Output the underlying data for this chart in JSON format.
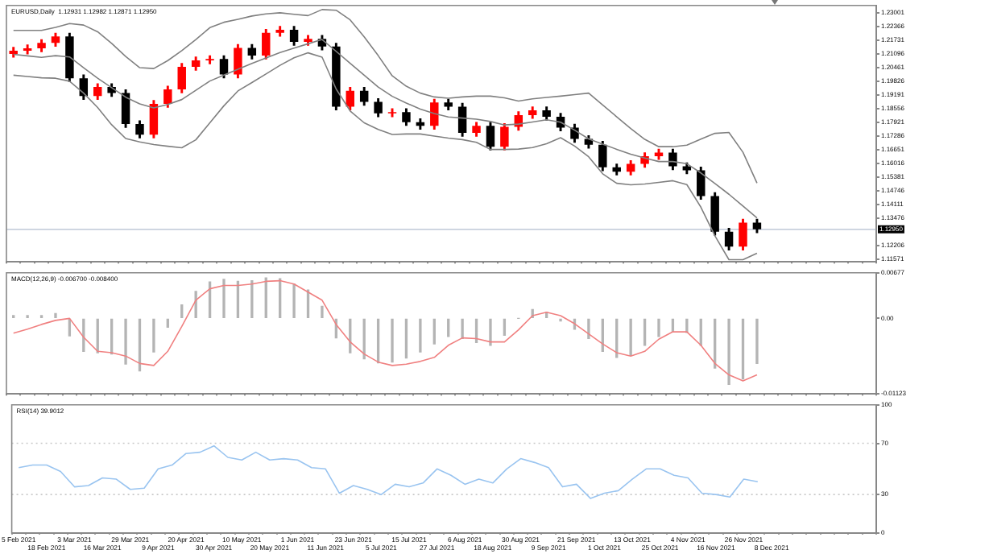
{
  "chart_data": [
    {
      "type": "candlestick",
      "title": "EURUSD,Daily  1.12931 1.12982 1.12871 1.12950",
      "categories": [
        null,
        null,
        null,
        null,
        null,
        null,
        null,
        null,
        null,
        null,
        null,
        null,
        null,
        null,
        null,
        null,
        null,
        null,
        null,
        null,
        null,
        null,
        null,
        null,
        null,
        null,
        null,
        null,
        null,
        null,
        null,
        null,
        null,
        null,
        null,
        null,
        null,
        null,
        null,
        null,
        null,
        null,
        null,
        null,
        null,
        null,
        null,
        null,
        null,
        null,
        null,
        null,
        null,
        null,
        null,
        null,
        null,
        null,
        null,
        null,
        null,
        null
      ],
      "ohlc": [
        [
          1.211,
          1.214,
          1.2095,
          1.2125
        ],
        [
          1.2125,
          1.2151,
          1.211,
          1.2136
        ],
        [
          1.2136,
          1.2176,
          1.2121,
          1.2161
        ],
        [
          1.2161,
          1.2206,
          1.2146,
          1.2191
        ],
        [
          1.2191,
          1.2206,
          1.1982,
          1.1997
        ],
        [
          1.1997,
          1.2012,
          1.1899,
          1.1914
        ],
        [
          1.1914,
          1.1971,
          1.1899,
          1.1956
        ],
        [
          1.1956,
          1.1971,
          1.1913,
          1.1928
        ],
        [
          1.1928,
          1.1943,
          1.1769,
          1.1784
        ],
        [
          1.1784,
          1.1799,
          1.172,
          1.1735
        ],
        [
          1.1735,
          1.1893,
          1.172,
          1.1878
        ],
        [
          1.1878,
          1.196,
          1.1863,
          1.1945
        ],
        [
          1.1945,
          1.2065,
          1.193,
          1.205
        ],
        [
          1.205,
          1.2095,
          1.2035,
          1.208
        ],
        [
          1.208,
          1.2101,
          1.2065,
          1.2086
        ],
        [
          1.2086,
          1.2101,
          1.1999,
          1.2014
        ],
        [
          1.2014,
          1.2153,
          1.1999,
          1.2138
        ],
        [
          1.2138,
          1.2153,
          1.2087,
          1.2102
        ],
        [
          1.2102,
          1.2223,
          1.2087,
          1.2208
        ],
        [
          1.2208,
          1.2237,
          1.2193,
          1.2222
        ],
        [
          1.2222,
          1.2237,
          1.2151,
          1.2166
        ],
        [
          1.2166,
          1.2195,
          1.2151,
          1.218
        ],
        [
          1.218,
          1.2195,
          1.2129,
          1.2144
        ],
        [
          1.2144,
          1.2159,
          1.185,
          1.1865
        ],
        [
          1.1865,
          1.1954,
          1.185,
          1.1939
        ],
        [
          1.1939,
          1.1954,
          1.1872,
          1.1887
        ],
        [
          1.1887,
          1.1902,
          1.1819,
          1.1834
        ],
        [
          1.1834,
          1.1855,
          1.1819,
          1.184
        ],
        [
          1.184,
          1.1855,
          1.1778,
          1.1793
        ],
        [
          1.1793,
          1.1808,
          1.1761,
          1.1776
        ],
        [
          1.1776,
          1.1899,
          1.1761,
          1.1884
        ],
        [
          1.1884,
          1.1899,
          1.185,
          1.1865
        ],
        [
          1.1865,
          1.188,
          1.1728,
          1.1743
        ],
        [
          1.1743,
          1.1791,
          1.1728,
          1.1776
        ],
        [
          1.1776,
          1.1791,
          1.1664,
          1.1679
        ],
        [
          1.1679,
          1.1786,
          1.1664,
          1.1771
        ],
        [
          1.1771,
          1.1841,
          1.1756,
          1.1826
        ],
        [
          1.1826,
          1.1863,
          1.1811,
          1.1848
        ],
        [
          1.1848,
          1.1863,
          1.1803,
          1.1818
        ],
        [
          1.1818,
          1.1833,
          1.1753,
          1.1768
        ],
        [
          1.1768,
          1.1783,
          1.17,
          1.1715
        ],
        [
          1.1715,
          1.173,
          1.1673,
          1.1688
        ],
        [
          1.1688,
          1.1703,
          1.1568,
          1.1583
        ],
        [
          1.1583,
          1.1598,
          1.1548,
          1.1563
        ],
        [
          1.1563,
          1.1614,
          1.1548,
          1.1599
        ],
        [
          1.1599,
          1.165,
          1.1584,
          1.1635
        ],
        [
          1.1635,
          1.1667,
          1.162,
          1.1652
        ],
        [
          1.1652,
          1.1667,
          1.1573,
          1.1588
        ],
        [
          1.1588,
          1.1603,
          1.1554,
          1.1569
        ],
        [
          1.1569,
          1.1584,
          1.1435,
          1.145
        ],
        [
          1.145,
          1.1465,
          1.1269,
          1.1284
        ],
        [
          1.1284,
          1.1299,
          1.12,
          1.1215
        ],
        [
          1.1215,
          1.1341,
          1.12,
          1.1326
        ],
        [
          1.1326,
          1.1341,
          1.128,
          1.1295
        ],
        null,
        null,
        null,
        null,
        null,
        null,
        null,
        null
      ],
      "colors": [
        "#ff0000",
        "#ff0000",
        "#ff0000",
        "#ff0000",
        "#000000",
        "#000000",
        "#ff0000",
        "#000000",
        "#000000",
        "#000000",
        "#ff0000",
        "#ff0000",
        "#ff0000",
        "#ff0000",
        "#ff0000",
        "#000000",
        "#ff0000",
        "#000000",
        "#ff0000",
        "#ff0000",
        "#000000",
        "#ff0000",
        "#000000",
        "#000000",
        "#ff0000",
        "#000000",
        "#000000",
        "#ff0000",
        "#000000",
        "#000000",
        "#ff0000",
        "#000000",
        "#000000",
        "#ff0000",
        "#000000",
        "#ff0000",
        "#ff0000",
        "#ff0000",
        "#000000",
        "#000000",
        "#000000",
        "#000000",
        "#000000",
        "#000000",
        "#ff0000",
        "#ff0000",
        "#ff0000",
        "#000000",
        "#000000",
        "#000000",
        "#000000",
        "#000000",
        "#ff0000",
        "#000000",
        null,
        null,
        null,
        null,
        null,
        null,
        null,
        null
      ],
      "series": [
        {
          "type": "line",
          "color": "#808080",
          "values": [
            1.2219,
            1.2219,
            1.2219,
            1.2233,
            1.2251,
            1.2244,
            1.2213,
            1.2159,
            1.2098,
            1.2046,
            1.2042,
            1.2079,
            1.2125,
            1.2177,
            1.2232,
            1.2257,
            1.2271,
            1.2286,
            1.2296,
            1.2301,
            1.2294,
            1.2288,
            1.2316,
            1.2313,
            1.2268,
            1.2189,
            1.2102,
            1.2008,
            1.196,
            1.1928,
            1.191,
            1.1904,
            1.191,
            1.1914,
            1.1914,
            1.1906,
            1.1891,
            1.1901,
            1.1908,
            1.1914,
            1.1921,
            1.1928,
            1.1873,
            1.1818,
            1.1763,
            1.1713,
            1.1679,
            1.1679,
            1.1686,
            1.1714,
            1.1741,
            1.1745,
            1.1653,
            1.151,
            null,
            null,
            null,
            null,
            null,
            null,
            null,
            null
          ]
        },
        {
          "type": "line",
          "color": "#808080",
          "values": [
            1.2108,
            1.2101,
            1.2094,
            1.2102,
            1.2096,
            1.2046,
            1.1997,
            1.1953,
            1.1909,
            1.1878,
            1.1859,
            1.1875,
            1.1898,
            1.1941,
            1.1984,
            1.2012,
            1.2039,
            1.2066,
            1.2091,
            1.2116,
            1.2137,
            1.2157,
            1.2177,
            1.2122,
            1.2066,
            1.2011,
            1.1956,
            1.1913,
            1.1882,
            1.1854,
            1.1833,
            1.1817,
            1.1812,
            1.1807,
            1.1796,
            1.178,
            1.1784,
            1.1794,
            1.1804,
            1.1793,
            1.1756,
            1.1715,
            1.1691,
            1.1667,
            1.1644,
            1.1626,
            1.161,
            1.161,
            1.16,
            1.1557,
            1.1508,
            1.1458,
            1.1403,
            1.1348,
            null,
            null,
            null,
            null,
            null,
            null,
            null,
            null
          ]
        },
        {
          "type": "line",
          "color": "#808080",
          "values": [
            1.2011,
            1.2005,
            1.1999,
            1.1997,
            1.1983,
            1.1928,
            1.1861,
            1.1781,
            1.1717,
            1.1701,
            1.1689,
            1.1681,
            1.1674,
            1.1711,
            1.179,
            1.1869,
            1.1938,
            1.1977,
            1.2017,
            1.2057,
            1.2092,
            1.2115,
            1.2095,
            1.1947,
            1.1845,
            1.179,
            1.1759,
            1.1736,
            1.1738,
            1.1738,
            1.1728,
            1.1719,
            1.1712,
            1.1699,
            1.1666,
            1.1666,
            1.1668,
            1.1675,
            1.1693,
            1.1721,
            1.1682,
            1.1632,
            1.1553,
            1.1509,
            1.1502,
            1.1506,
            1.1513,
            1.1521,
            1.1503,
            1.1398,
            1.1265,
            1.1154,
            1.1154,
            1.1184,
            null,
            null,
            null,
            null,
            null,
            null,
            null,
            null
          ]
        }
      ],
      "ref_lines": [
        {
          "axis": "y",
          "value": 1.1295,
          "label": "1.12950",
          "color": "#c8d0dc"
        }
      ],
      "ylim": [
        1.1144,
        1.2335
      ],
      "yticks": [
        1.11571,
        1.12206,
        1.13476,
        1.14111,
        1.14746,
        1.15381,
        1.16016,
        1.16651,
        1.17286,
        1.17921,
        1.18556,
        1.19191,
        1.19826,
        1.20461,
        1.21096,
        1.21731,
        1.22366,
        1.23001
      ],
      "tick_labels": "y"
    },
    {
      "type": "bar",
      "title": "MACD(12,26,9) -0.006700 -0.008400",
      "categories": [
        null,
        null,
        null,
        null,
        null,
        null,
        null,
        null,
        null,
        null,
        null,
        null,
        null,
        null,
        null,
        null,
        null,
        null,
        null,
        null,
        null,
        null,
        null,
        null,
        null,
        null,
        null,
        null,
        null,
        null,
        null,
        null,
        null,
        null,
        null,
        null,
        null,
        null,
        null,
        null,
        null,
        null,
        null,
        null,
        null,
        null,
        null,
        null,
        null,
        null,
        null,
        null,
        null,
        null,
        null,
        null,
        null,
        null,
        null,
        null,
        null,
        null
      ],
      "series": [
        {
          "type": "bar",
          "color": "#b4b4b4",
          "values": [
            0.0004,
            0.0004,
            0.0004,
            0.0007,
            -0.0026,
            -0.0049,
            -0.0051,
            -0.0053,
            -0.0068,
            -0.0078,
            -0.005,
            -0.0013,
            0.002,
            0.004,
            0.0054,
            0.0058,
            0.0055,
            0.0056,
            0.006,
            0.0059,
            0.0051,
            0.0042,
            0.0018,
            -0.0029,
            -0.0051,
            -0.006,
            -0.0066,
            -0.0065,
            -0.0059,
            -0.005,
            -0.0038,
            -0.0027,
            -0.003,
            -0.0036,
            -0.004,
            -0.0025,
            0.0,
            0.0013,
            0.0009,
            -0.0004,
            -0.0016,
            -0.003,
            -0.0049,
            -0.0058,
            -0.0055,
            -0.004,
            -0.0027,
            -0.002,
            -0.0021,
            -0.004,
            -0.0074,
            -0.0098,
            -0.009,
            -0.0067,
            null,
            null,
            null,
            null,
            null,
            null,
            null,
            null
          ]
        },
        {
          "type": "line",
          "color": "#f08080",
          "values": [
            -0.0022,
            -0.0016,
            -0.0009,
            -0.0003,
            0,
            -0.0028,
            -0.0049,
            -0.0051,
            -0.0056,
            -0.0067,
            -0.007,
            -0.0049,
            -0.0012,
            0.0027,
            0.0044,
            0.0049,
            0.0049,
            0.0051,
            0.0055,
            0.0056,
            0.0051,
            0.0039,
            0.0027,
            -0.0009,
            -0.0035,
            -0.0053,
            -0.0065,
            -0.007,
            -0.0068,
            -0.0064,
            -0.0058,
            -0.004,
            -0.0029,
            -0.003,
            -0.0035,
            -0.0035,
            -0.0017,
            0.0004,
            0.0009,
            0.0004,
            -0.0008,
            -0.0023,
            -0.0038,
            -0.0051,
            -0.0056,
            -0.0049,
            -0.0031,
            -0.002,
            -0.002,
            -0.004,
            -0.0067,
            -0.0084,
            -0.0093,
            -0.0084,
            null,
            null,
            null,
            null,
            null,
            null,
            null,
            null
          ]
        }
      ],
      "ylim": [
        -0.01123,
        0.00677
      ],
      "yticks": [
        -0.01123,
        {
          "value": 0,
          "label": "0.00"
        },
        0.00677
      ],
      "tick_labels": "y"
    },
    {
      "type": "line",
      "title": "RSI(14) 39.9012",
      "color": "#99c4f0",
      "categories": [
        "5 Feb 2021",
        null,
        "18 Feb 2021",
        null,
        "3 Mar 2021",
        null,
        "16 Mar 2021",
        null,
        "29 Mar 2021",
        null,
        "9 Apr 2021",
        null,
        "20 Apr 2021",
        null,
        "30 Apr 2021",
        null,
        "10 May 2021",
        null,
        "20 May 2021",
        null,
        "1 Jun 2021",
        null,
        "11 Jun 2021",
        null,
        "23 Jun 2021",
        null,
        "5 Jul 2021",
        null,
        "15 Jul 2021",
        null,
        "27 Jul 2021",
        null,
        "6 Aug 2021",
        null,
        "18 Aug 2021",
        null,
        "30 Aug 2021",
        null,
        "9 Sep 2021",
        null,
        "21 Sep 2021",
        null,
        "1 Oct 2021",
        null,
        "13 Oct 2021",
        null,
        "25 Oct 2021",
        null,
        "4 Nov 2021",
        null,
        "16 Nov 2021",
        null,
        "26 Nov 2021",
        null,
        "8 Dec 2021",
        null,
        null,
        null,
        null,
        null,
        null,
        null
      ],
      "values": [
        51,
        53,
        53,
        48,
        36,
        37,
        43,
        42,
        34,
        35,
        50,
        53,
        62,
        63,
        68,
        59,
        57,
        63,
        57,
        58,
        57,
        51,
        50,
        31,
        37,
        34,
        30,
        38,
        36,
        39,
        50,
        45,
        38,
        42,
        39,
        50,
        58,
        55,
        51,
        36,
        38,
        27,
        31,
        33,
        42,
        50,
        50,
        45,
        43,
        31,
        30,
        28,
        42,
        40,
        null,
        null,
        null,
        null,
        null,
        null,
        null,
        null
      ],
      "ref_lines": [
        {
          "axis": "y",
          "value": 70,
          "color": "#c8c8c8",
          "line_style": "dotted"
        },
        {
          "axis": "y",
          "value": 30,
          "color": "#c8c8c8",
          "line_style": "dotted"
        }
      ],
      "ylim": [
        0,
        100
      ],
      "yticks": [
        0,
        30,
        70,
        100
      ]
    }
  ]
}
